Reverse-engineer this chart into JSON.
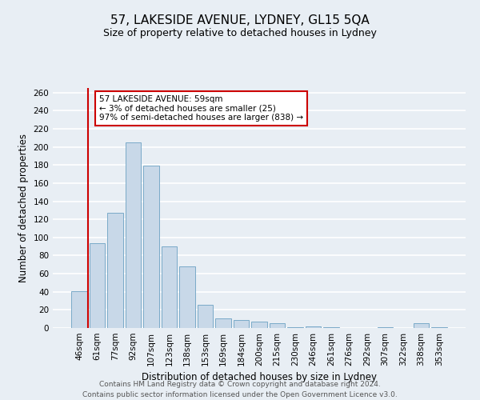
{
  "title": "57, LAKESIDE AVENUE, LYDNEY, GL15 5QA",
  "subtitle": "Size of property relative to detached houses in Lydney",
  "xlabel": "Distribution of detached houses by size in Lydney",
  "ylabel": "Number of detached properties",
  "bar_labels": [
    "46sqm",
    "61sqm",
    "77sqm",
    "92sqm",
    "107sqm",
    "123sqm",
    "138sqm",
    "153sqm",
    "169sqm",
    "184sqm",
    "200sqm",
    "215sqm",
    "230sqm",
    "246sqm",
    "261sqm",
    "276sqm",
    "292sqm",
    "307sqm",
    "322sqm",
    "338sqm",
    "353sqm"
  ],
  "bar_values": [
    41,
    94,
    127,
    205,
    179,
    90,
    68,
    26,
    11,
    9,
    7,
    5,
    1,
    2,
    1,
    0,
    0,
    1,
    0,
    5,
    1
  ],
  "bar_color": "#c8d8e8",
  "bar_edge_color": "#7aaac8",
  "marker_color": "#cc0000",
  "annotation_title": "57 LAKESIDE AVENUE: 59sqm",
  "annotation_line1": "← 3% of detached houses are smaller (25)",
  "annotation_line2": "97% of semi-detached houses are larger (838) →",
  "annotation_box_color": "#ffffff",
  "annotation_box_edge_color": "#cc0000",
  "footer_line1": "Contains HM Land Registry data © Crown copyright and database right 2024.",
  "footer_line2": "Contains public sector information licensed under the Open Government Licence v3.0.",
  "ylim": [
    0,
    265
  ],
  "yticks": [
    0,
    20,
    40,
    60,
    80,
    100,
    120,
    140,
    160,
    180,
    200,
    220,
    240,
    260
  ],
  "background_color": "#e8eef4",
  "grid_color": "#ffffff",
  "title_fontsize": 11,
  "subtitle_fontsize": 9,
  "axis_label_fontsize": 8.5,
  "tick_fontsize": 7.5,
  "footer_fontsize": 6.5,
  "annotation_fontsize": 7.5
}
